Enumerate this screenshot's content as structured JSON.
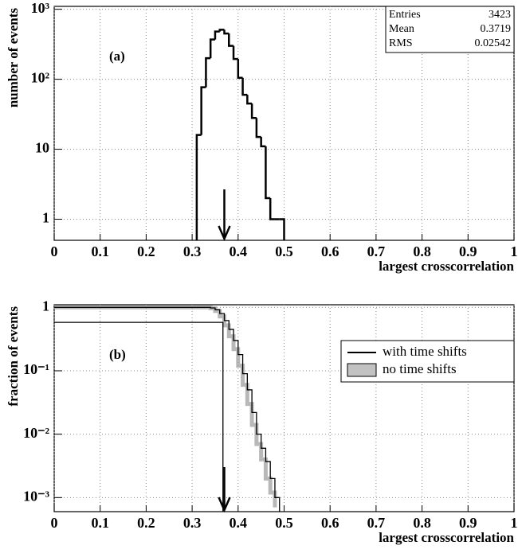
{
  "chart_data": [
    {
      "type": "histogram",
      "annotation": "(a)",
      "xlabel": "largest crosscorrelation",
      "ylabel": "number of events",
      "log_y": true,
      "grid": true,
      "color": "#000000",
      "xlim": [
        0,
        1
      ],
      "xticks": [
        0,
        0.1,
        0.2,
        0.3,
        0.4,
        0.5,
        0.6,
        0.7,
        0.8,
        0.9,
        1
      ],
      "ylim": [
        0.5,
        1100
      ],
      "yticks": [
        1,
        10,
        {
          "value": 100,
          "label": "10²"
        },
        {
          "value": 1000,
          "label": "10³"
        }
      ],
      "bins": [
        0.31,
        0.32,
        0.33,
        0.34,
        0.35,
        0.36,
        0.37,
        0.38,
        0.39,
        0.4,
        0.41,
        0.42,
        0.43,
        0.44,
        0.45,
        0.46,
        0.47,
        0.48,
        0.49,
        0.5
      ],
      "values": [
        16,
        77,
        200,
        370,
        480,
        510,
        450,
        300,
        195,
        105,
        60,
        45,
        28,
        15,
        11,
        2,
        1,
        1,
        1
      ],
      "stats": [
        {
          "label": "Entries",
          "value": 3423
        },
        {
          "label": "Mean",
          "value": 0.3719
        },
        {
          "label": "RMS",
          "value": 0.02542
        }
      ],
      "arrow_x": 0.37
    },
    {
      "type": "line",
      "annotation": "(b)",
      "xlabel": "largest crosscorrelation",
      "ylabel": "fraction of events",
      "log_y": true,
      "grid": true,
      "legend": "right",
      "xlim": [
        0,
        1
      ],
      "xticks": [
        0,
        0.1,
        0.2,
        0.3,
        0.4,
        0.5,
        0.6,
        0.7,
        0.8,
        0.9,
        1
      ],
      "ylim": [
        0.0006,
        1.1
      ],
      "yticks": [
        1,
        {
          "value": 0.1,
          "label": "10⁻¹"
        },
        {
          "value": 0.01,
          "label": "10⁻²"
        },
        {
          "value": 0.001,
          "label": "10⁻³"
        }
      ],
      "series": [
        {
          "name": "no time shifts",
          "color": "#9a9a9a",
          "x": [
            0,
            0.33,
            0.34,
            0.35,
            0.36,
            0.37,
            0.38,
            0.39,
            0.4,
            0.41,
            0.42,
            0.43,
            0.44,
            0.45,
            0.46,
            0.47,
            0.48
          ],
          "values": [
            1,
            1,
            0.97,
            0.88,
            0.72,
            0.52,
            0.35,
            0.22,
            0.12,
            0.06,
            0.03,
            0.014,
            0.007,
            0.004,
            0.002,
            0.0012,
            0.0007
          ]
        },
        {
          "name": "with time shifts",
          "color": "#000000",
          "x": [
            0,
            0.33,
            0.34,
            0.35,
            0.36,
            0.37,
            0.38,
            0.39,
            0.4,
            0.41,
            0.42,
            0.43,
            0.44,
            0.45,
            0.46,
            0.47,
            0.48,
            0.49
          ],
          "values": [
            1,
            1,
            0.98,
            0.92,
            0.8,
            0.62,
            0.45,
            0.3,
            0.18,
            0.09,
            0.05,
            0.022,
            0.01,
            0.006,
            0.0037,
            0.002,
            0.001,
            0.0006
          ]
        },
        {
          "color": "#000000",
          "x": [
            0,
            0.355,
            0.367,
            0.367
          ],
          "values": [
            0.58,
            0.58,
            0.5,
            0.0006
          ]
        }
      ],
      "arrow_x": 0.37
    }
  ]
}
